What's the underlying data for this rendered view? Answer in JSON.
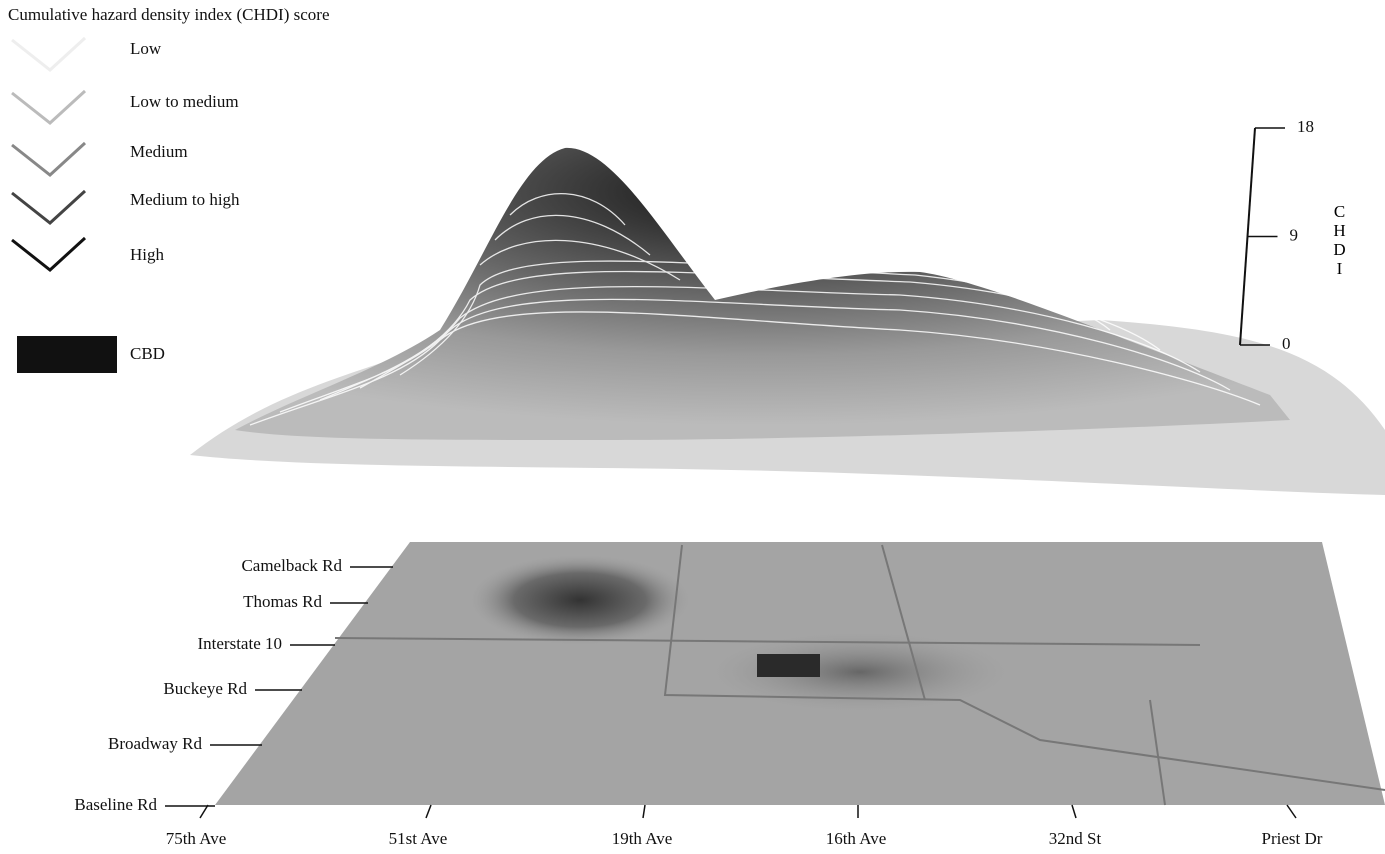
{
  "legend": {
    "title": "Cumulative hazard density index (CHDI) score",
    "items": [
      "Low",
      "Low to medium",
      "Medium",
      "Medium to high",
      "High"
    ],
    "cbd": "CBD"
  },
  "z_axis": {
    "label": "CHDI",
    "ticks": [
      0,
      9,
      18
    ],
    "range": [
      0,
      18
    ]
  },
  "map": {
    "roads": [
      "Camelback Rd",
      "Thomas Rd",
      "Interstate 10",
      "Buckeye Rd",
      "Broadway Rd",
      "Baseline Rd"
    ],
    "avenues": [
      "75th Ave",
      "51st Ave",
      "19th Ave",
      "16th Ave",
      "32nd St",
      "Priest Dr"
    ]
  }
}
